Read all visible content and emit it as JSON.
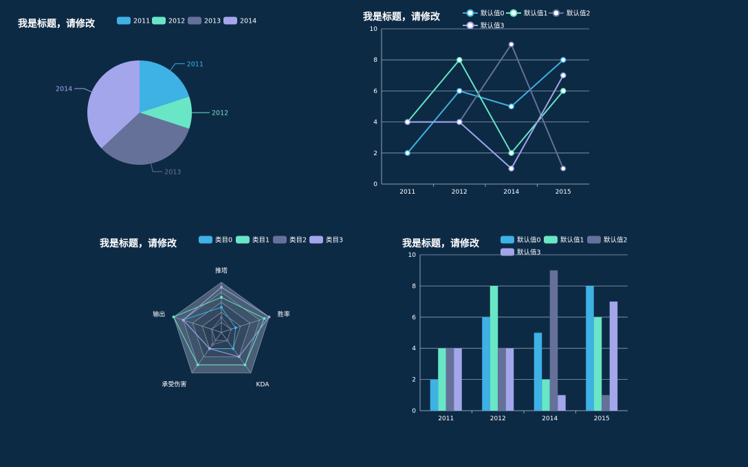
{
  "colors": [
    "#3eb1e5",
    "#68e6c6",
    "#66719a",
    "#a3a6ea"
  ],
  "background": "#0d2a45",
  "chart_data": [
    {
      "id": "pie",
      "type": "pie",
      "title": "我是标题，请修改",
      "legend": "top",
      "categories": [
        "2011",
        "2012",
        "2013",
        "2014"
      ],
      "values": [
        20,
        10,
        33,
        37
      ]
    },
    {
      "id": "line",
      "type": "line",
      "title": "我是标题，请修改",
      "legend": "top",
      "categories": [
        "2011",
        "2012",
        "2014",
        "2015"
      ],
      "ylim": [
        0,
        10
      ],
      "yticks": [
        "0",
        "2",
        "4",
        "6",
        "8",
        "10"
      ],
      "grid": true,
      "series": [
        {
          "name": "默认值0",
          "values": [
            2,
            6,
            5,
            8
          ]
        },
        {
          "name": "默认值1",
          "values": [
            4,
            8,
            2,
            6
          ]
        },
        {
          "name": "默认值2",
          "values": [
            4,
            4,
            9,
            1
          ]
        },
        {
          "name": "默认值3",
          "values": [
            4,
            4,
            1,
            7
          ]
        }
      ]
    },
    {
      "id": "radar",
      "type": "radar",
      "title": "我是标题，请修改",
      "legend": "top",
      "indicators": [
        "推塔",
        "胜率",
        "KDA",
        "承受伤害",
        "输出"
      ],
      "max": 10,
      "series": [
        {
          "name": "类目0",
          "values": [
            5,
            3,
            4,
            4,
            8
          ]
        },
        {
          "name": "类目1",
          "values": [
            7,
            9,
            8,
            8,
            10
          ]
        },
        {
          "name": "类目2",
          "values": [
            3,
            2,
            2,
            3,
            2
          ]
        },
        {
          "name": "类目3",
          "values": [
            9,
            10,
            6,
            4,
            8
          ]
        }
      ]
    },
    {
      "id": "bar",
      "type": "bar",
      "title": "我是标题，请修改",
      "legend": "top",
      "categories": [
        "2011",
        "2012",
        "2014",
        "2015"
      ],
      "ylim": [
        0,
        10
      ],
      "yticks": [
        "0",
        "2",
        "4",
        "6",
        "8",
        "10"
      ],
      "grid": true,
      "series": [
        {
          "name": "默认值0",
          "values": [
            2,
            6,
            5,
            8
          ]
        },
        {
          "name": "默认值1",
          "values": [
            4,
            8,
            2,
            6
          ]
        },
        {
          "name": "默认值2",
          "values": [
            4,
            4,
            9,
            1
          ]
        },
        {
          "name": "默认值3",
          "values": [
            4,
            4,
            1,
            7
          ]
        }
      ]
    }
  ]
}
